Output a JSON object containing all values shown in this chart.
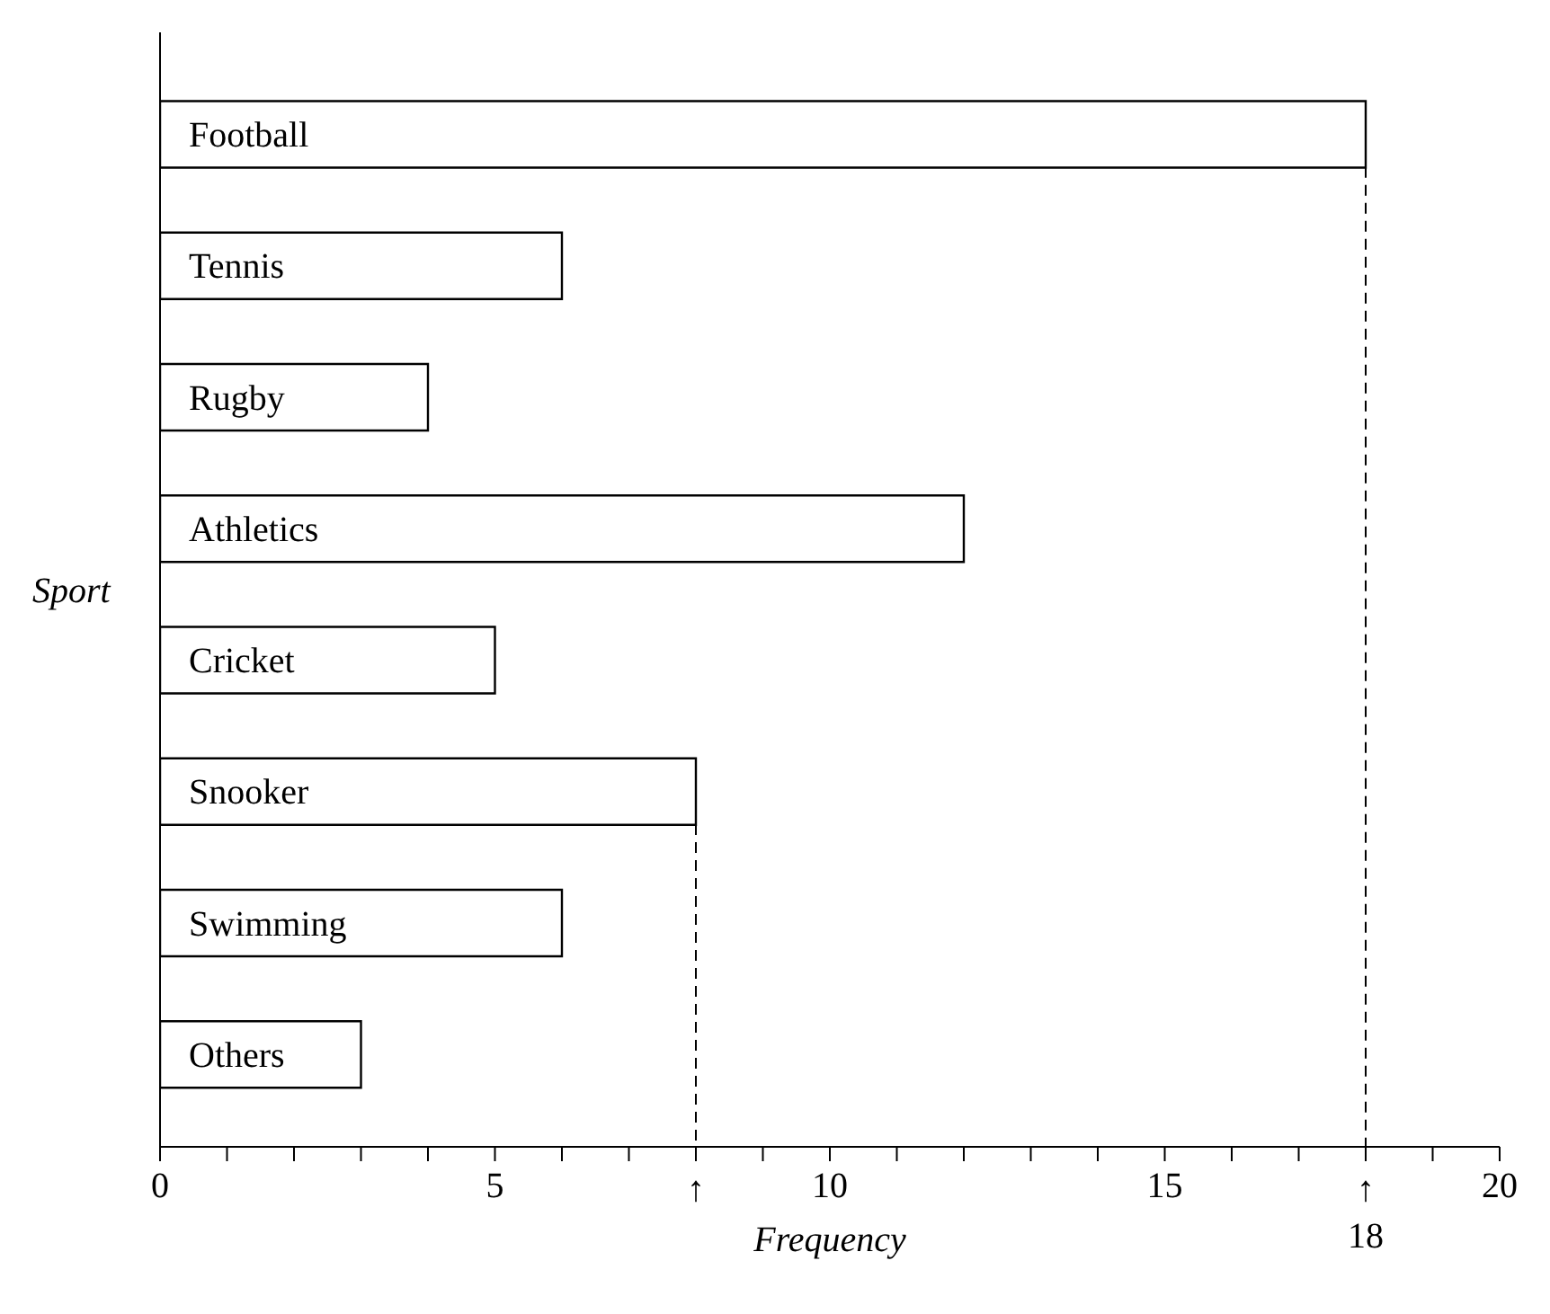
{
  "chart_data": {
    "type": "bar",
    "orientation": "horizontal",
    "xlabel": "Frequency",
    "ylabel": "Sport",
    "categories": [
      "Football",
      "Tennis",
      "Rugby",
      "Athletics",
      "Cricket",
      "Snooker",
      "Swimming",
      "Others"
    ],
    "values": [
      18,
      6,
      4,
      12,
      5,
      8,
      6,
      3
    ],
    "color": "#ffffff",
    "xlim": [
      0,
      20
    ],
    "xticks": [
      0,
      {
        "value": 1,
        "label": null
      },
      {
        "value": 2,
        "label": null
      },
      {
        "value": 3,
        "label": null
      },
      {
        "value": 4,
        "label": null
      },
      5,
      {
        "value": 6,
        "label": null
      },
      {
        "value": 7,
        "label": null
      },
      {
        "value": 8,
        "label": null
      },
      {
        "value": 9,
        "label": null
      },
      10,
      {
        "value": 11,
        "label": null
      },
      {
        "value": 12,
        "label": null
      },
      {
        "value": 13,
        "label": null
      },
      {
        "value": 14,
        "label": null
      },
      15,
      {
        "value": 16,
        "label": null
      },
      {
        "value": 17,
        "label": null
      },
      {
        "value": 18,
        "label": null
      },
      {
        "value": 19,
        "label": null
      },
      20
    ],
    "ref_lines": [
      {
        "axis": "x",
        "value": 8,
        "label": "↑",
        "line_style": "dashed"
      },
      {
        "axis": "x",
        "value": 18,
        "label": "↑ 18",
        "line_style": "dashed"
      }
    ],
    "grid": false,
    "legend": false
  }
}
